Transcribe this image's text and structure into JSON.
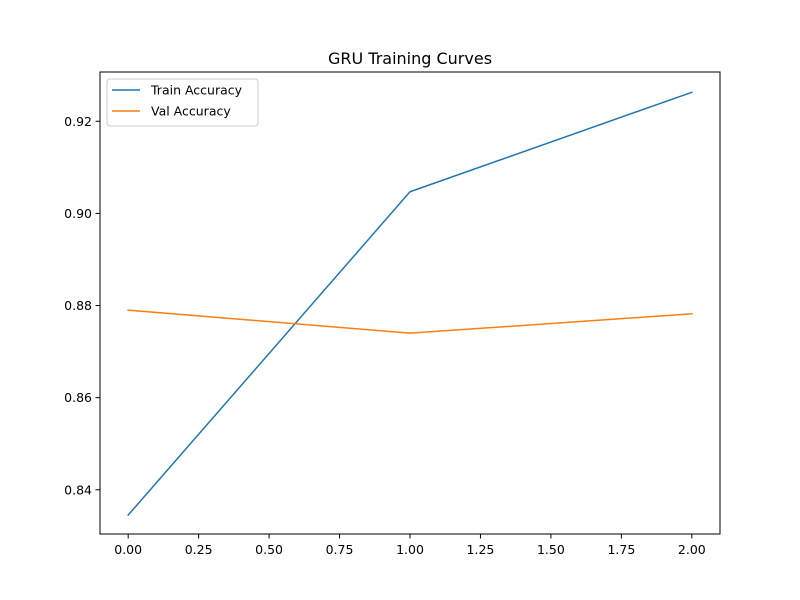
{
  "chart_data": {
    "type": "line",
    "title": "GRU Training Curves",
    "xlabel": "",
    "ylabel": "",
    "x": [
      0,
      1,
      2
    ],
    "xlim": [
      -0.1,
      2.1
    ],
    "ylim": [
      0.8304,
      0.9307
    ],
    "xticks": [
      0.0,
      0.25,
      0.5,
      0.75,
      1.0,
      1.25,
      1.5,
      1.75,
      2.0
    ],
    "xtick_labels": [
      "0.00",
      "0.25",
      "0.50",
      "0.75",
      "1.00",
      "1.25",
      "1.50",
      "1.75",
      "2.00"
    ],
    "yticks": [
      0.84,
      0.86,
      0.88,
      0.9,
      0.92
    ],
    "ytick_labels": [
      "0.84",
      "0.86",
      "0.88",
      "0.90",
      "0.92"
    ],
    "grid": false,
    "legend_position": "top-left",
    "series": [
      {
        "name": "Train Accuracy",
        "color": "#1f77b4",
        "values": [
          0.8345,
          0.9047,
          0.9263
        ]
      },
      {
        "name": "Val Accuracy",
        "color": "#ff7f0e",
        "values": [
          0.879,
          0.874,
          0.8782
        ]
      }
    ]
  }
}
